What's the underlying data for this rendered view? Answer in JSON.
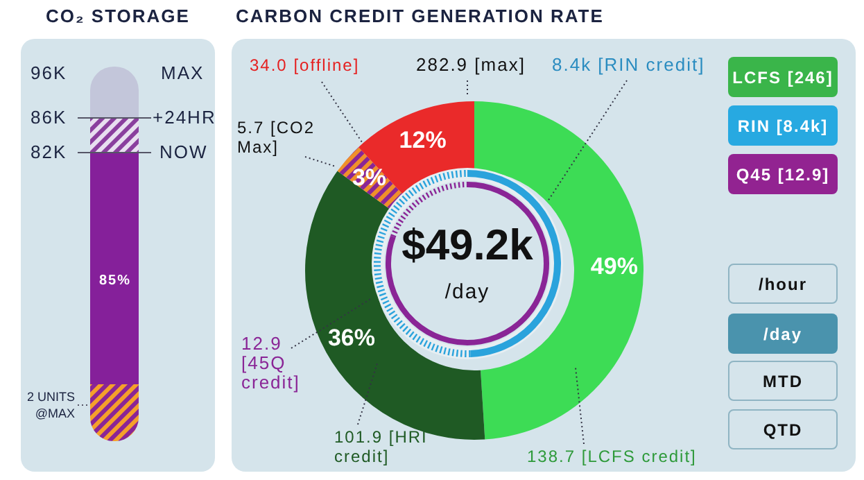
{
  "chart_data": [
    {
      "type": "other",
      "title": "CO₂ STORAGE",
      "annotations": [
        "96K",
        "MAX",
        "86K",
        "+24HR",
        "82K",
        "NOW",
        "85%",
        "2 UNITS @MAX"
      ]
    },
    {
      "type": "donut",
      "title": "CARBON CREDIT GENERATION RATE",
      "categories": [
        "138.7 [LCFS credit]",
        "101.9 [HRI credit]",
        "5.7 [CO2 Max]",
        "34.0 [offline]"
      ],
      "values": [
        49,
        36,
        3,
        12
      ],
      "colors": [
        "#3ddc55",
        "#1f5a24",
        "#f0902a",
        "#ea2a2a"
      ],
      "value_labels": [
        "49%",
        "36%",
        "3%",
        "12%"
      ],
      "annotations": [
        "282.9 [max]",
        "8.4k [RIN credit]",
        "12.9 [45Q credit]",
        "$49.2k",
        "/day",
        "LCFS [246]",
        "RIN [8.4k]",
        "Q45 [12.9]",
        "/hour",
        "/day",
        "MTD",
        "QTD"
      ]
    }
  ]
}
